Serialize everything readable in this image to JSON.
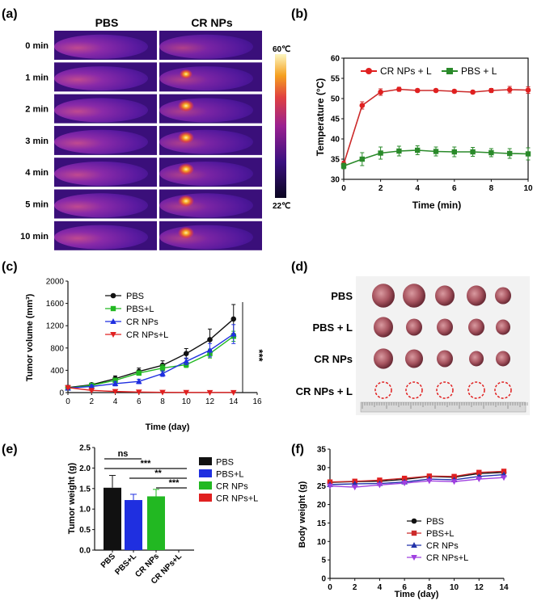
{
  "panel_labels": [
    "(a)",
    "(b)",
    "(c)",
    "(d)",
    "(e)",
    "(f)"
  ],
  "colors": {
    "black": "#111111",
    "red": "#e02020",
    "green": "#22b822",
    "blue": "#1f2fe0",
    "purple": "#a040e0",
    "darkred": "#cc2a2a",
    "darkgreen": "#2a8a2a",
    "navy": "#2233aa"
  },
  "thermal": {
    "col_headers": [
      "PBS",
      "CR NPs"
    ],
    "row_labels": [
      "0 min",
      "1 min",
      "2 min",
      "3 min",
      "4 min",
      "5 min",
      "10 min"
    ],
    "scale_max": "60℃",
    "scale_min": "22℃"
  },
  "tumor_photo": {
    "row_labels": [
      "PBS",
      "PBS + L",
      "CR NPs",
      "CR NPs + L"
    ]
  },
  "chart_data": [
    {
      "type": "line",
      "panel": "(b)",
      "xlabel": "Time (min)",
      "ylabel": "Temperature (°C)",
      "xlim": [
        0,
        10
      ],
      "ylim": [
        30,
        60
      ],
      "xticks": [
        "0",
        "2",
        "4",
        "6",
        "8",
        "10"
      ],
      "yticks": [
        "30",
        "35",
        "40",
        "45",
        "50",
        "55",
        "60"
      ],
      "x": [
        0,
        1,
        2,
        3,
        4,
        5,
        6,
        7,
        8,
        9,
        10
      ],
      "series": [
        {
          "name": "CR NPs + L",
          "values": [
            33.8,
            48.3,
            51.6,
            52.3,
            52.0,
            52.0,
            51.8,
            51.6,
            52.0,
            52.2,
            52.1
          ],
          "errors": [
            0.7,
            0.9,
            0.8,
            0.5,
            0.4,
            0.4,
            0.4,
            0.4,
            0.5,
            0.8,
            0.8
          ]
        },
        {
          "name": "PBS + L",
          "values": [
            33.3,
            35.0,
            36.5,
            37.0,
            37.2,
            36.9,
            36.8,
            36.8,
            36.6,
            36.4,
            36.3
          ],
          "errors": [
            0.7,
            1.6,
            1.5,
            1.2,
            1.1,
            1.1,
            1.2,
            1.1,
            1.0,
            1.2,
            1.5
          ]
        }
      ]
    },
    {
      "type": "line",
      "panel": "(c)",
      "xlabel": "Time (day)",
      "ylabel": "Tumor volume (mm³)",
      "xlim": [
        0,
        16
      ],
      "ylim": [
        0,
        2000
      ],
      "xticks": [
        "0",
        "2",
        "4",
        "6",
        "8",
        "10",
        "12",
        "14",
        "16"
      ],
      "yticks": [
        "0",
        "400",
        "800",
        "1200",
        "1600",
        "2000"
      ],
      "x": [
        0,
        2,
        4,
        6,
        8,
        10,
        12,
        14
      ],
      "annotation": "***",
      "series": [
        {
          "name": "PBS",
          "values": [
            90,
            140,
            250,
            380,
            490,
            700,
            950,
            1320
          ],
          "errors": [
            40,
            30,
            50,
            60,
            80,
            90,
            190,
            260
          ]
        },
        {
          "name": "PBS+L",
          "values": [
            80,
            130,
            220,
            350,
            440,
            500,
            700,
            1010
          ],
          "errors": [
            30,
            30,
            40,
            40,
            60,
            50,
            80,
            90
          ]
        },
        {
          "name": "CR NPs",
          "values": [
            80,
            110,
            160,
            200,
            340,
            560,
            760,
            1050
          ],
          "errors": [
            30,
            30,
            40,
            40,
            50,
            60,
            120,
            170
          ]
        },
        {
          "name": "CR NPs+L",
          "values": [
            90,
            40,
            20,
            10,
            5,
            3,
            2,
            2
          ],
          "errors": [
            20,
            10,
            5,
            3,
            2,
            1,
            1,
            1
          ]
        }
      ]
    },
    {
      "type": "bar",
      "panel": "(e)",
      "ylabel": "Tumor weight (g)",
      "ylim": [
        0,
        2.5
      ],
      "yticks": [
        "0.0",
        "0.5",
        "1.0",
        "1.5",
        "2.0",
        "2.5"
      ],
      "categories": [
        "PBS",
        "PBS+L",
        "CR NPs",
        "CR NPs+L"
      ],
      "values": [
        1.52,
        1.22,
        1.31,
        0.0
      ],
      "errors": [
        0.3,
        0.14,
        0.17,
        0.0
      ],
      "significance": [
        "ns",
        "***",
        "**",
        "***"
      ]
    },
    {
      "type": "line",
      "panel": "(f)",
      "xlabel": "Time (day)",
      "ylabel": "Body weight (g)",
      "xlim": [
        0,
        14
      ],
      "ylim": [
        0,
        35
      ],
      "xticks": [
        "0",
        "2",
        "4",
        "6",
        "8",
        "10",
        "12",
        "14"
      ],
      "yticks": [
        "0",
        "5",
        "10",
        "15",
        "20",
        "25",
        "30",
        "35"
      ],
      "x": [
        0,
        2,
        4,
        6,
        8,
        10,
        12,
        14
      ],
      "series": [
        {
          "name": "PBS",
          "values": [
            26.0,
            26.2,
            26.3,
            26.8,
            27.6,
            27.4,
            28.4,
            28.7
          ]
        },
        {
          "name": "PBS+L",
          "values": [
            26.1,
            26.3,
            26.6,
            27.1,
            27.7,
            27.6,
            28.7,
            29.0
          ]
        },
        {
          "name": "CR NPs",
          "values": [
            25.4,
            25.6,
            25.7,
            26.1,
            26.9,
            26.7,
            27.6,
            28.1
          ]
        },
        {
          "name": "CR NPs+L",
          "values": [
            25.0,
            24.7,
            25.3,
            25.8,
            26.4,
            26.2,
            26.9,
            27.3
          ]
        }
      ]
    }
  ]
}
